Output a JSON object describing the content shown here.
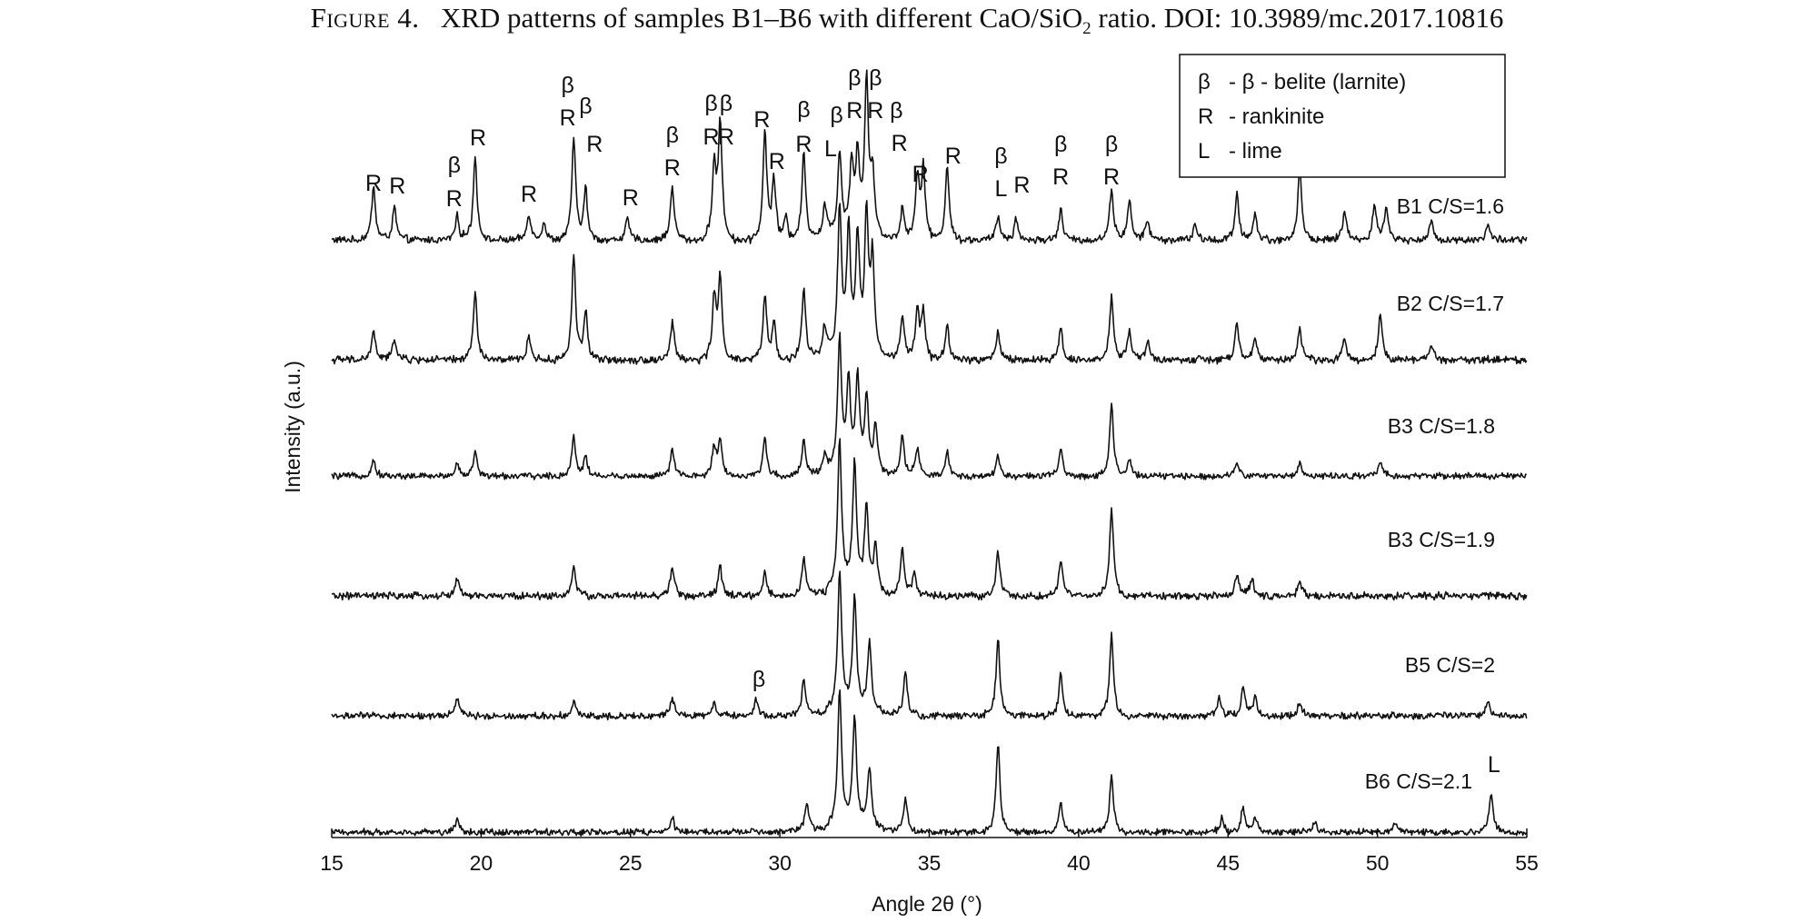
{
  "caption": {
    "label": "Figure 4.",
    "text_before": "XRD patterns of samples B1–B6 with different CaO/SiO",
    "subscript": "2",
    "text_after": " ratio. DOI: 10.3989/mc.2017.10816"
  },
  "chart_data": {
    "type": "line",
    "xlabel": "Angle 2θ (°)",
    "ylabel": "Intensity (a.u.)",
    "xlim": [
      15,
      55
    ],
    "xticks": [
      15,
      20,
      25,
      30,
      35,
      40,
      45,
      50,
      55
    ],
    "grid": false,
    "legend": {
      "placement": "top-right",
      "entries": [
        {
          "symbol": "β",
          "text": "- β - belite (larnite)"
        },
        {
          "symbol": "R",
          "text": "- rankinite"
        },
        {
          "symbol": "L",
          "text": "- lime"
        }
      ]
    },
    "series": [
      {
        "name": "B1 C/S=1.6",
        "peaks": [
          [
            16.4,
            0.36
          ],
          [
            17.1,
            0.22
          ],
          [
            19.2,
            0.16
          ],
          [
            19.8,
            0.55
          ],
          [
            21.6,
            0.18
          ],
          [
            22.1,
            0.12
          ],
          [
            23.1,
            0.68
          ],
          [
            23.5,
            0.33
          ],
          [
            24.9,
            0.14
          ],
          [
            26.4,
            0.36
          ],
          [
            27.8,
            0.47
          ],
          [
            28.0,
            0.78
          ],
          [
            29.5,
            0.72
          ],
          [
            29.8,
            0.39
          ],
          [
            30.2,
            0.15
          ],
          [
            30.8,
            0.58
          ],
          [
            31.5,
            0.22
          ],
          [
            32.0,
            0.55
          ],
          [
            32.4,
            0.45
          ],
          [
            32.6,
            0.5
          ],
          [
            32.9,
            1.0
          ],
          [
            33.1,
            0.4
          ],
          [
            34.1,
            0.22
          ],
          [
            34.6,
            0.42
          ],
          [
            34.8,
            0.48
          ],
          [
            35.6,
            0.5
          ],
          [
            37.3,
            0.16
          ],
          [
            37.9,
            0.14
          ],
          [
            39.4,
            0.2
          ],
          [
            41.1,
            0.35
          ],
          [
            41.7,
            0.27
          ],
          [
            42.3,
            0.14
          ],
          [
            43.9,
            0.1
          ],
          [
            45.3,
            0.3
          ],
          [
            45.9,
            0.18
          ],
          [
            47.4,
            0.48
          ],
          [
            48.9,
            0.2
          ],
          [
            49.9,
            0.24
          ],
          [
            50.3,
            0.22
          ],
          [
            51.8,
            0.12
          ],
          [
            53.7,
            0.1
          ]
        ]
      },
      {
        "name": "B2 C/S=1.7",
        "peaks": [
          [
            16.4,
            0.18
          ],
          [
            17.1,
            0.14
          ],
          [
            19.8,
            0.42
          ],
          [
            21.6,
            0.15
          ],
          [
            23.1,
            0.65
          ],
          [
            23.5,
            0.3
          ],
          [
            26.4,
            0.24
          ],
          [
            27.8,
            0.38
          ],
          [
            28.0,
            0.5
          ],
          [
            29.5,
            0.4
          ],
          [
            29.8,
            0.22
          ],
          [
            30.8,
            0.45
          ],
          [
            31.5,
            0.2
          ],
          [
            32.0,
            0.9
          ],
          [
            32.3,
            0.75
          ],
          [
            32.6,
            0.7
          ],
          [
            32.9,
            0.85
          ],
          [
            33.1,
            0.6
          ],
          [
            34.1,
            0.28
          ],
          [
            34.6,
            0.3
          ],
          [
            34.8,
            0.3
          ],
          [
            35.6,
            0.22
          ],
          [
            37.3,
            0.18
          ],
          [
            39.4,
            0.2
          ],
          [
            41.1,
            0.4
          ],
          [
            41.7,
            0.18
          ],
          [
            42.3,
            0.12
          ],
          [
            45.3,
            0.22
          ],
          [
            45.9,
            0.14
          ],
          [
            47.4,
            0.2
          ],
          [
            48.9,
            0.12
          ],
          [
            50.1,
            0.3
          ],
          [
            51.8,
            0.1
          ]
        ]
      },
      {
        "name": "B3 C/S=1.8",
        "peaks": [
          [
            16.4,
            0.12
          ],
          [
            19.2,
            0.1
          ],
          [
            19.8,
            0.18
          ],
          [
            23.1,
            0.3
          ],
          [
            23.5,
            0.15
          ],
          [
            26.4,
            0.2
          ],
          [
            27.8,
            0.22
          ],
          [
            28.0,
            0.28
          ],
          [
            29.5,
            0.3
          ],
          [
            30.8,
            0.28
          ],
          [
            31.5,
            0.15
          ],
          [
            32.0,
            1.0
          ],
          [
            32.3,
            0.65
          ],
          [
            32.6,
            0.7
          ],
          [
            32.9,
            0.55
          ],
          [
            33.2,
            0.35
          ],
          [
            34.1,
            0.3
          ],
          [
            34.6,
            0.22
          ],
          [
            35.6,
            0.18
          ],
          [
            37.3,
            0.15
          ],
          [
            39.4,
            0.2
          ],
          [
            41.1,
            0.55
          ],
          [
            41.7,
            0.12
          ],
          [
            45.3,
            0.12
          ],
          [
            47.4,
            0.1
          ],
          [
            50.1,
            0.1
          ]
        ]
      },
      {
        "name": "B3 C/S=1.9",
        "peaks": [
          [
            19.2,
            0.12
          ],
          [
            23.1,
            0.2
          ],
          [
            26.4,
            0.2
          ],
          [
            28.0,
            0.2
          ],
          [
            29.5,
            0.15
          ],
          [
            30.8,
            0.25
          ],
          [
            32.0,
            1.0
          ],
          [
            32.5,
            0.85
          ],
          [
            32.9,
            0.55
          ],
          [
            33.2,
            0.3
          ],
          [
            34.1,
            0.32
          ],
          [
            34.5,
            0.15
          ],
          [
            37.3,
            0.3
          ],
          [
            39.4,
            0.24
          ],
          [
            41.1,
            0.6
          ],
          [
            45.3,
            0.15
          ],
          [
            45.8,
            0.12
          ],
          [
            47.4,
            0.1
          ]
        ]
      },
      {
        "name": "B5 C/S=2",
        "peaks": [
          [
            19.2,
            0.14
          ],
          [
            23.1,
            0.1
          ],
          [
            26.4,
            0.13
          ],
          [
            27.8,
            0.1
          ],
          [
            29.2,
            0.12
          ],
          [
            30.8,
            0.25
          ],
          [
            32.0,
            1.0
          ],
          [
            32.5,
            0.8
          ],
          [
            33.0,
            0.5
          ],
          [
            34.2,
            0.32
          ],
          [
            37.3,
            0.55
          ],
          [
            39.4,
            0.3
          ],
          [
            41.1,
            0.58
          ],
          [
            44.7,
            0.13
          ],
          [
            45.5,
            0.2
          ],
          [
            45.9,
            0.13
          ],
          [
            47.4,
            0.1
          ],
          [
            53.7,
            0.1
          ]
        ]
      },
      {
        "name": "B6 C/S=2.1",
        "peaks": [
          [
            19.2,
            0.1
          ],
          [
            26.4,
            0.1
          ],
          [
            30.9,
            0.22
          ],
          [
            32.0,
            1.0
          ],
          [
            32.5,
            0.82
          ],
          [
            33.0,
            0.45
          ],
          [
            34.2,
            0.25
          ],
          [
            37.3,
            0.65
          ],
          [
            39.4,
            0.22
          ],
          [
            41.1,
            0.42
          ],
          [
            44.8,
            0.1
          ],
          [
            45.5,
            0.18
          ],
          [
            45.9,
            0.12
          ],
          [
            47.9,
            0.08
          ],
          [
            50.6,
            0.07
          ],
          [
            53.8,
            0.28
          ]
        ]
      }
    ],
    "peak_labels": [
      {
        "x": 16.4,
        "stack": [
          "R"
        ]
      },
      {
        "x": 17.2,
        "stack": [
          "R"
        ]
      },
      {
        "x": 19.1,
        "stack": [
          "β",
          "R"
        ]
      },
      {
        "x": 19.9,
        "stack": [
          "R"
        ]
      },
      {
        "x": 21.6,
        "stack": [
          "R"
        ]
      },
      {
        "x": 22.9,
        "stack": [
          "β",
          "R"
        ]
      },
      {
        "x": 23.5,
        "stack": [
          "β"
        ]
      },
      {
        "x": 23.8,
        "stack": [
          "R"
        ]
      },
      {
        "x": 25.0,
        "stack": [
          "R"
        ]
      },
      {
        "x": 26.4,
        "stack": [
          "β",
          "R"
        ]
      },
      {
        "x": 27.7,
        "stack": [
          "β",
          "R"
        ]
      },
      {
        "x": 28.2,
        "stack": [
          "β",
          "R"
        ]
      },
      {
        "x": 29.4,
        "stack": [
          "R"
        ]
      },
      {
        "x": 29.9,
        "stack": [
          "R"
        ]
      },
      {
        "x": 30.8,
        "stack": [
          "β",
          "R"
        ]
      },
      {
        "x": 31.7,
        "stack": [
          "L"
        ]
      },
      {
        "x": 31.9,
        "stack": [
          "β"
        ]
      },
      {
        "x": 32.5,
        "stack": [
          "β",
          "R"
        ]
      },
      {
        "x": 33.2,
        "stack": [
          "β",
          "R"
        ]
      },
      {
        "x": 33.9,
        "stack": [
          "β"
        ]
      },
      {
        "x": 34.0,
        "stack": [
          "R"
        ]
      },
      {
        "x": 34.7,
        "stack": [
          "R"
        ]
      },
      {
        "x": 35.8,
        "stack": [
          "R"
        ]
      },
      {
        "x": 37.4,
        "stack": [
          "β",
          "L"
        ]
      },
      {
        "x": 38.1,
        "stack": [
          "R"
        ]
      },
      {
        "x": 39.4,
        "stack": [
          "β",
          "R"
        ]
      },
      {
        "x": 41.1,
        "stack": [
          "β",
          "R"
        ]
      },
      {
        "x": 29.3,
        "stack": [
          "β"
        ]
      },
      {
        "x": 53.9,
        "stack": [
          "L"
        ]
      }
    ]
  }
}
